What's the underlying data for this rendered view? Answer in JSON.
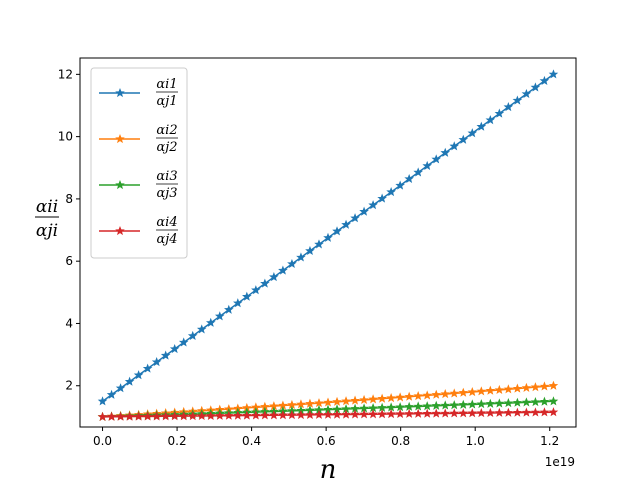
{
  "chart_data": {
    "type": "line",
    "xlabel": "n",
    "ylabel": {
      "numerator": "αii",
      "denominator": "αji"
    },
    "x_offset_label": "1e19",
    "xlim": [
      -0.0605,
      1.2705
    ],
    "ylim": [
      0.675,
      12.525
    ],
    "x_ticks": [
      0.0,
      0.2,
      0.4,
      0.6,
      0.8,
      1.0,
      1.2
    ],
    "x_tick_labels": [
      "0.0",
      "0.2",
      "0.4",
      "0.6",
      "0.8",
      "1.0",
      "1.2"
    ],
    "y_ticks": [
      2,
      4,
      6,
      8,
      10,
      12
    ],
    "y_tick_labels": [
      "2",
      "4",
      "6",
      "8",
      "10",
      "12"
    ],
    "grid": false,
    "legend_position": "top-left",
    "x_range": [
      0.0,
      1.21
    ],
    "num_points": 51,
    "marker": "star",
    "series": [
      {
        "name": "αi1 / αj1",
        "label_num": "αi1",
        "label_den": "αj1",
        "color": "#1f77b4",
        "y_start": 1.5,
        "y_end": 12.0,
        "curvature": 0.0
      },
      {
        "name": "αi2 / αj2",
        "label_num": "αi2",
        "label_den": "αj2",
        "color": "#ff7f0e",
        "y_start": 1.0,
        "y_end": 2.0,
        "curvature": 0.15
      },
      {
        "name": "αi3 / αj3",
        "label_num": "αi3",
        "label_den": "αj3",
        "color": "#2ca02c",
        "y_start": 1.0,
        "y_end": 1.5,
        "curvature": 0.15
      },
      {
        "name": "αi4 / αj4",
        "label_num": "αi4",
        "label_den": "αj4",
        "color": "#d62728",
        "y_start": 1.0,
        "y_end": 1.15,
        "curvature": 0.15
      }
    ]
  }
}
